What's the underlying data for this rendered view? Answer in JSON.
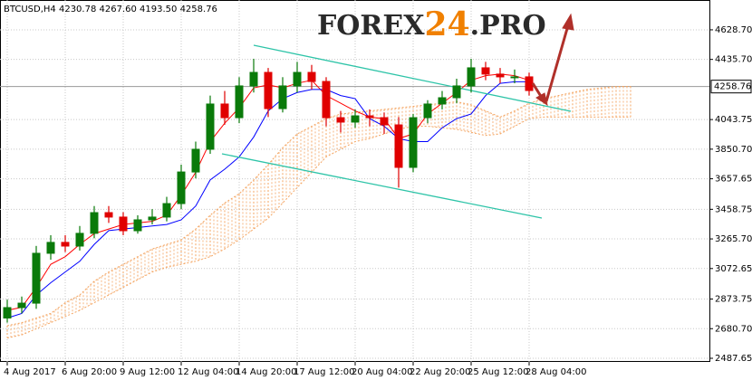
{
  "chart_data": {
    "type": "candlestick",
    "header": "BTCUSD,H4  4230.78 4267.60 4193.50 4258.76",
    "watermark": [
      "FOREX",
      "24",
      ".PRO"
    ],
    "categories": [
      "4 Aug 2017",
      null,
      null,
      null,
      "6 Aug 20:00",
      null,
      null,
      null,
      "9 Aug 12:00",
      null,
      null,
      null,
      "12 Aug 04:00",
      null,
      null,
      null,
      "14 Aug 20:00",
      null,
      null,
      null,
      "17 Aug 12:00",
      null,
      null,
      null,
      "20 Aug 04:00",
      null,
      null,
      null,
      "22 Aug 20:00",
      null,
      null,
      null,
      "25 Aug 12:00",
      null,
      null,
      null,
      "28 Aug 04:00",
      null,
      null,
      null,
      null,
      null,
      null,
      null
    ],
    "open": [
      2750,
      2818,
      2847,
      3172,
      3243,
      3219,
      3302,
      3437,
      3408,
      3319,
      3390,
      3408,
      3496,
      3702,
      3850,
      4145,
      4056,
      4263,
      4351,
      4115,
      4263,
      4351,
      4292,
      4056,
      4027,
      4068,
      4056,
      4009,
      3732,
      4056,
      4145,
      4186,
      4263,
      4381,
      4340,
      4322,
      4322,
      null,
      null,
      null,
      null,
      null,
      null,
      null
    ],
    "high": [
      2870,
      2890,
      3220,
      3290,
      3290,
      3350,
      3480,
      3480,
      3440,
      3420,
      3460,
      3540,
      3750,
      3900,
      4200,
      4230,
      4320,
      4440,
      4380,
      4320,
      4420,
      4400,
      4320,
      4100,
      4110,
      4110,
      4090,
      4060,
      4080,
      4170,
      4230,
      4310,
      4440,
      4420,
      4380,
      4370,
      4350,
      null,
      null,
      null,
      null,
      null,
      null,
      null
    ],
    "low": [
      2720,
      2780,
      2810,
      3130,
      3180,
      3190,
      3270,
      3370,
      3290,
      3300,
      3360,
      3380,
      3460,
      3660,
      3820,
      4010,
      4020,
      4220,
      4060,
      4090,
      4220,
      4240,
      4000,
      3960,
      3990,
      4000,
      3950,
      3600,
      3700,
      4020,
      4110,
      4150,
      4220,
      4300,
      4280,
      4280,
      4200,
      null,
      null,
      null,
      null,
      null,
      null,
      null
    ],
    "close": [
      2818,
      2847,
      3172,
      3243,
      3219,
      3302,
      3437,
      3408,
      3319,
      3390,
      3408,
      3496,
      3702,
      3850,
      4145,
      4056,
      4263,
      4351,
      4115,
      4263,
      4351,
      4292,
      4056,
      4027,
      4068,
      4056,
      4009,
      3732,
      4056,
      4145,
      4186,
      4263,
      4381,
      4340,
      4322,
      4322,
      4233,
      null,
      null,
      null,
      null,
      null,
      null,
      null
    ],
    "up_color": "#0a7a0a",
    "down_color": "#e00000",
    "lines": [
      {
        "color": "#ff0000",
        "values": [
          2800,
          2820,
          2950,
          3100,
          3150,
          3230,
          3300,
          3330,
          3360,
          3370,
          3380,
          3420,
          3550,
          3700,
          3900,
          4020,
          4120,
          4250,
          4270,
          4250,
          4280,
          4300,
          4200,
          4150,
          4100,
          4060,
          4050,
          3920,
          3950,
          4080,
          4150,
          4220,
          4300,
          4330,
          4340,
          4330,
          4300,
          null,
          null,
          null,
          null,
          null,
          null,
          null
        ]
      },
      {
        "color": "#0000ff",
        "values": [
          2750,
          2780,
          2900,
          2980,
          3050,
          3120,
          3230,
          3320,
          3330,
          3340,
          3350,
          3360,
          3390,
          3480,
          3650,
          3720,
          3800,
          3930,
          4100,
          4180,
          4220,
          4240,
          4240,
          4200,
          4180,
          4050,
          4000,
          3920,
          3900,
          3900,
          3990,
          4050,
          4080,
          4200,
          4280,
          4290,
          4290,
          null,
          null,
          null,
          null,
          null,
          null,
          null
        ]
      }
    ],
    "cloud": {
      "color": "#f4a460",
      "span_a": [
        2700,
        2720,
        2750,
        2780,
        2850,
        2900,
        2990,
        3050,
        3100,
        3150,
        3200,
        3230,
        3260,
        3330,
        3420,
        3500,
        3560,
        3650,
        3750,
        3860,
        3950,
        4000,
        4050,
        4080,
        4090,
        4100,
        4110,
        4120,
        4130,
        4140,
        4150,
        4160,
        4140,
        4100,
        4060,
        4100,
        4150,
        4180,
        4200,
        4220,
        4240,
        4250,
        4260,
        4260
      ],
      "span_b": [
        2620,
        2640,
        2680,
        2720,
        2760,
        2800,
        2850,
        2900,
        2950,
        3000,
        3050,
        3080,
        3100,
        3120,
        3150,
        3200,
        3260,
        3330,
        3400,
        3500,
        3600,
        3700,
        3800,
        3850,
        3900,
        3920,
        3950,
        3980,
        4000,
        4000,
        3990,
        3980,
        3960,
        3940,
        3950,
        4000,
        4050,
        4060,
        4060,
        4060,
        4060,
        4060,
        4060,
        4060
      ]
    },
    "last_price": {
      "value": 4258.76,
      "label": "4258.76"
    },
    "ylim": [
      2464,
      4823
    ],
    "yticks": [
      {
        "value": 4628.7,
        "label": "4628.70"
      },
      {
        "value": 4435.7,
        "label": "4435.70"
      },
      4043.75,
      {
        "value": 3850.7,
        "label": "3850.70"
      },
      3657.65,
      3458.75,
      {
        "value": 3265.7,
        "label": "3265.70"
      },
      3072.65,
      2873.75,
      {
        "value": 2680.7,
        "label": "2680.70"
      },
      2487.65
    ],
    "grid": true
  }
}
